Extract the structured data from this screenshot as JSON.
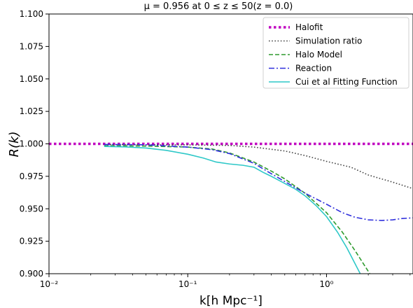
{
  "chart_data": {
    "type": "line",
    "title": "μ = 0.956 at 0 ≤ z ≤ 50(z = 0.0)",
    "xlabel": "k[h Mpc⁻¹]",
    "ylabel": "R(k)",
    "xscale": "log",
    "xlim": [
      0.01,
      4.2
    ],
    "ylim": [
      0.9,
      1.1
    ],
    "x_tick_labels": [
      {
        "value": 0.01,
        "label": "10⁻²"
      },
      {
        "value": 0.1,
        "label": "10⁻¹"
      },
      {
        "value": 1,
        "label": "10⁰"
      }
    ],
    "y_tick_labels": [
      "0.900",
      "0.925",
      "0.950",
      "0.975",
      "1.000",
      "1.025",
      "1.050",
      "1.075",
      "1.100"
    ],
    "grid": false,
    "legend_position": "top-right",
    "series": [
      {
        "name": "Halofit",
        "color": "#c000c0",
        "style": "dotted-thick",
        "x": [
          0.01,
          4.2
        ],
        "y": [
          1.0,
          1.0
        ]
      },
      {
        "name": "Simulation ratio",
        "color": "#444444",
        "style": "dotted",
        "x": [
          0.025,
          0.05,
          0.1,
          0.2,
          0.3,
          0.5,
          0.7,
          1.0,
          1.5,
          2.0,
          3.0,
          4.2
        ],
        "y": [
          0.9995,
          0.9993,
          0.9992,
          0.9988,
          0.9975,
          0.9945,
          0.991,
          0.9865,
          0.982,
          0.976,
          0.9705,
          0.9655
        ]
      },
      {
        "name": "Halo Model",
        "color": "#2e9a2e",
        "style": "dashed",
        "x": [
          0.025,
          0.05,
          0.1,
          0.15,
          0.2,
          0.3,
          0.4,
          0.5,
          0.7,
          1.0,
          1.3,
          1.6,
          2.05
        ],
        "y": [
          0.9985,
          0.9983,
          0.9975,
          0.996,
          0.993,
          0.986,
          0.979,
          0.973,
          0.962,
          0.947,
          0.932,
          0.918,
          0.9
        ]
      },
      {
        "name": "Reaction",
        "color": "#2f2fdc",
        "style": "dashdot",
        "x": [
          0.025,
          0.05,
          0.1,
          0.15,
          0.2,
          0.3,
          0.4,
          0.5,
          0.7,
          0.9,
          1.0,
          1.3,
          1.6,
          2.0,
          2.5,
          3.0,
          3.5,
          4.2
        ],
        "y": [
          0.9995,
          0.9993,
          0.9975,
          0.9955,
          0.9925,
          0.985,
          0.977,
          0.971,
          0.962,
          0.956,
          0.9535,
          0.947,
          0.9435,
          0.9415,
          0.941,
          0.9415,
          0.9425,
          0.943
        ]
      },
      {
        "name": "Cui et al Fitting Function",
        "color": "#2ec8c8",
        "style": "solid",
        "x": [
          0.025,
          0.035,
          0.05,
          0.07,
          0.1,
          0.13,
          0.16,
          0.2,
          0.25,
          0.3,
          0.35,
          0.4,
          0.5,
          0.6,
          0.7,
          0.85,
          1.0,
          1.2,
          1.4,
          1.6,
          1.75
        ],
        "y": [
          0.998,
          0.9977,
          0.9968,
          0.995,
          0.992,
          0.989,
          0.986,
          0.9845,
          0.9835,
          0.982,
          0.978,
          0.975,
          0.9695,
          0.965,
          0.96,
          0.952,
          0.944,
          0.932,
          0.92,
          0.908,
          0.9
        ]
      }
    ]
  }
}
